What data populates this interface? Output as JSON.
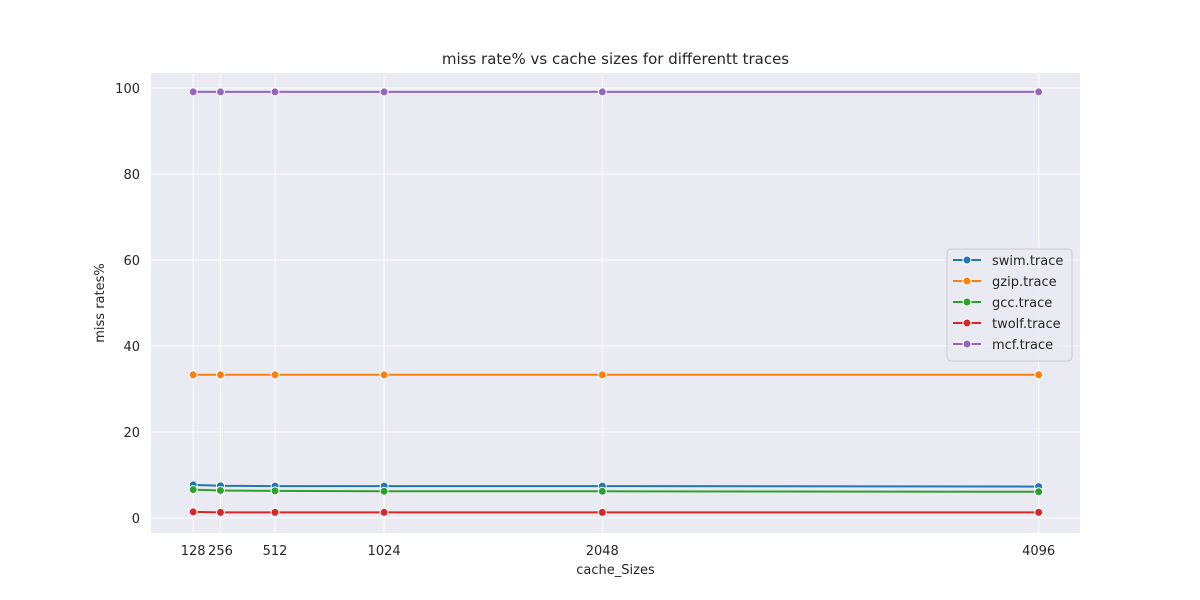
{
  "chart_data": {
    "type": "line",
    "title": "miss rate% vs cache sizes for differentt traces",
    "xlabel": "cache_Sizes",
    "ylabel": "miss rates%",
    "x": [
      128,
      256,
      512,
      1024,
      2048,
      4096
    ],
    "x_tick_labels": [
      "128",
      "256",
      "512",
      "1024",
      "2048",
      "4096"
    ],
    "xlim": [
      -70,
      4290
    ],
    "ylim": [
      -3.5,
      103.5
    ],
    "y_ticks": [
      0,
      20,
      40,
      60,
      80,
      100
    ],
    "grid": true,
    "legend_position": "center-right",
    "series": [
      {
        "name": "swim.trace",
        "color": "#1f77b4",
        "values": [
          7.7,
          7.5,
          7.4,
          7.4,
          7.4,
          7.3
        ]
      },
      {
        "name": "gzip.trace",
        "color": "#ff7f0e",
        "values": [
          33.3,
          33.3,
          33.3,
          33.3,
          33.3,
          33.3
        ]
      },
      {
        "name": "gcc.trace",
        "color": "#2ca02c",
        "values": [
          6.6,
          6.4,
          6.3,
          6.2,
          6.2,
          6.1
        ]
      },
      {
        "name": "twolf.trace",
        "color": "#d62728",
        "values": [
          1.4,
          1.3,
          1.3,
          1.3,
          1.3,
          1.3
        ]
      },
      {
        "name": "mcf.trace",
        "color": "#9467bd",
        "values": [
          99.1,
          99.1,
          99.1,
          99.1,
          99.1,
          99.1
        ]
      }
    ]
  }
}
